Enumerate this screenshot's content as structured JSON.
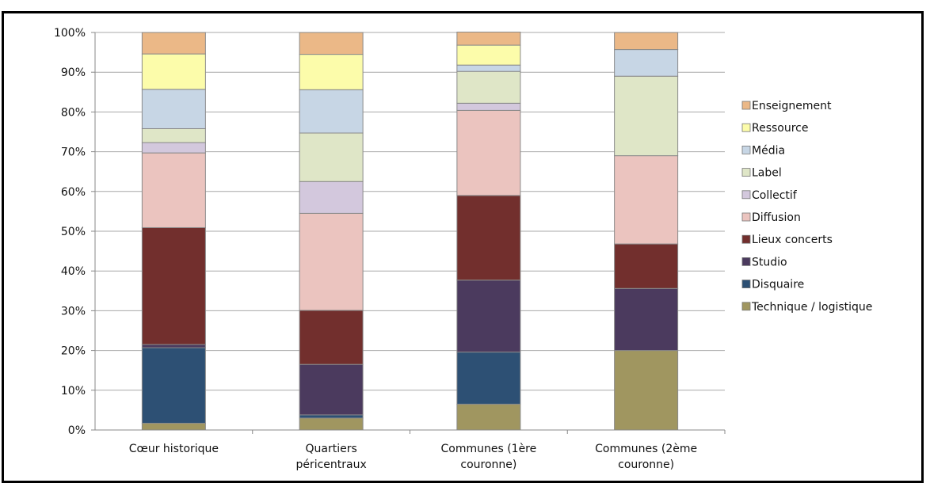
{
  "chart_data": {
    "type": "bar",
    "stacked": true,
    "percent_stacked": true,
    "title": "",
    "xlabel": "",
    "ylabel": "",
    "ylim": [
      0,
      100
    ],
    "y_ticks": [
      "0%",
      "10%",
      "20%",
      "30%",
      "40%",
      "50%",
      "60%",
      "70%",
      "80%",
      "90%",
      "100%"
    ],
    "grid": true,
    "legend_position": "right",
    "categories": [
      [
        "Cœur historique"
      ],
      [
        "Quartiers",
        "péricentraux"
      ],
      [
        "Communes (1ère",
        "couronne)"
      ],
      [
        "Communes (2ème",
        "couronne)"
      ]
    ],
    "series": [
      {
        "name": "Technique / logistique",
        "color": "#a09660",
        "values": [
          1.7,
          3.0,
          6.5,
          20.0
        ]
      },
      {
        "name": "Disquaire",
        "color": "#2d5074",
        "values": [
          19.0,
          0.8,
          13.1,
          0.0
        ]
      },
      {
        "name": "Studio",
        "color": "#4b3a5e",
        "values": [
          0.8,
          12.7,
          18.1,
          15.6
        ]
      },
      {
        "name": "Lieux concerts",
        "color": "#722f2d",
        "values": [
          29.4,
          13.6,
          21.3,
          11.2
        ]
      },
      {
        "name": "Diffusion",
        "color": "#ebc4bf",
        "values": [
          18.8,
          24.4,
          21.4,
          22.2
        ]
      },
      {
        "name": "Collectif",
        "color": "#d3c8dd",
        "values": [
          2.6,
          8.0,
          1.8,
          0.0
        ]
      },
      {
        "name": "Label",
        "color": "#dfe6c7",
        "values": [
          3.5,
          12.2,
          8.0,
          20.0
        ]
      },
      {
        "name": "Média",
        "color": "#c7d6e5",
        "values": [
          9.9,
          10.9,
          1.6,
          6.7
        ]
      },
      {
        "name": "Ressource",
        "color": "#fcfcaa",
        "values": [
          8.9,
          8.9,
          5.0,
          0.0
        ]
      },
      {
        "name": "Enseignement",
        "color": "#ebb887",
        "values": [
          5.4,
          5.5,
          3.3,
          4.3
        ]
      }
    ]
  }
}
